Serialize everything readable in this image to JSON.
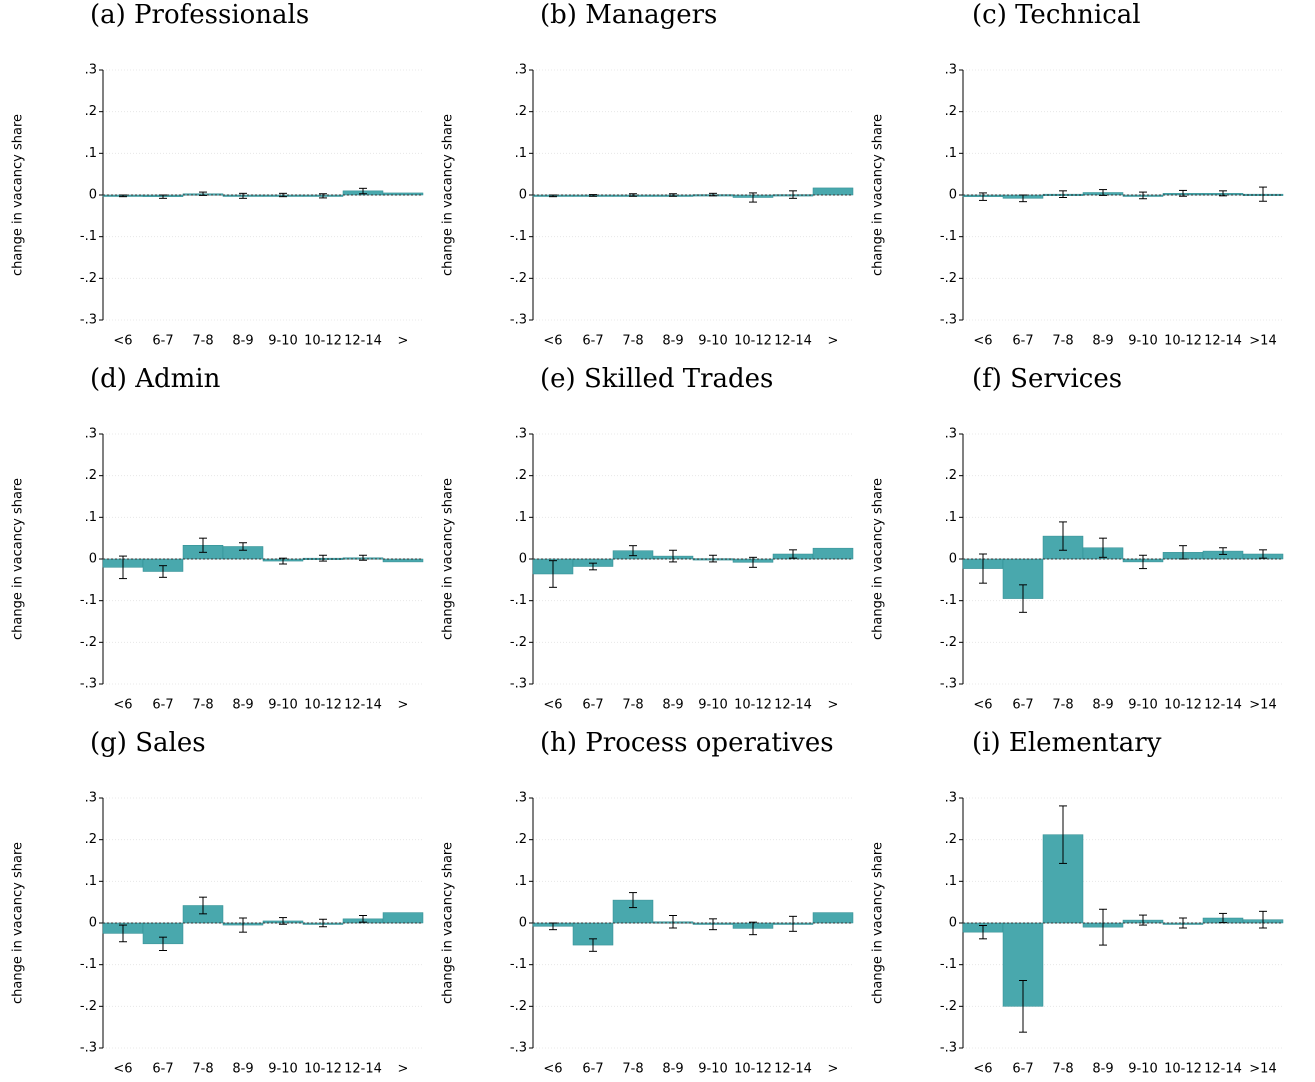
{
  "figure": {
    "bar_color": "#49a8ad",
    "bar_edge_color": "#2f8b90",
    "error_bar_color": "#000000"
  },
  "chart_data": [
    {
      "type": "bar",
      "title": "(a) Professionals",
      "ylabel": "change in vacancy share",
      "ylim": [
        -0.3,
        0.3
      ],
      "y_ticks": [
        ".3",
        ".2",
        ".1",
        "0",
        "-.1",
        "-.2",
        "-.3"
      ],
      "categories": [
        "<6",
        "6-7",
        "7-8",
        "8-9",
        "9-10",
        "10-12",
        "12-14",
        ">"
      ],
      "values": [
        -0.002,
        -0.004,
        0.003,
        -0.002,
        0.0,
        -0.002,
        0.01,
        0.005
      ],
      "error_low": [
        -0.004,
        -0.008,
        -0.001,
        -0.008,
        -0.004,
        -0.007,
        0.003,
        null
      ],
      "error_high": [
        0.0,
        0.0,
        0.007,
        0.004,
        0.004,
        0.003,
        0.016,
        null
      ]
    },
    {
      "type": "bar",
      "title": "(b) Managers",
      "ylabel": "change in vacancy share",
      "ylim": [
        -0.3,
        0.3
      ],
      "y_ticks": [
        ".3",
        ".2",
        ".1",
        "0",
        "-.1",
        "-.2",
        "-.3"
      ],
      "categories": [
        "<6",
        "6-7",
        "7-8",
        "8-9",
        "9-10",
        "10-12",
        "12-14",
        ">"
      ],
      "values": [
        -0.002,
        -0.001,
        0.0,
        0.0,
        0.001,
        -0.006,
        0.001,
        0.017
      ],
      "error_low": [
        -0.004,
        -0.003,
        -0.003,
        -0.003,
        -0.002,
        -0.017,
        -0.008,
        null
      ],
      "error_high": [
        0.0,
        0.001,
        0.003,
        0.003,
        0.004,
        0.005,
        0.01,
        null
      ]
    },
    {
      "type": "bar",
      "title": "(c) Technical",
      "ylabel": "change in vacancy share",
      "ylim": [
        -0.3,
        0.3
      ],
      "y_ticks": [
        ".3",
        ".2",
        ".1",
        "0",
        "-.1",
        "-.2",
        "-.3"
      ],
      "categories": [
        "<6",
        "6-7",
        "7-8",
        "8-9",
        "9-10",
        "10-12",
        "12-14",
        ">14"
      ],
      "values": [
        -0.004,
        -0.008,
        0.002,
        0.006,
        -0.001,
        0.004,
        0.004,
        0.002
      ],
      "error_low": [
        -0.013,
        -0.016,
        -0.006,
        -0.001,
        -0.009,
        -0.003,
        -0.002,
        -0.015
      ],
      "error_high": [
        0.005,
        0.0,
        0.01,
        0.013,
        0.007,
        0.011,
        0.01,
        0.019
      ]
    },
    {
      "type": "bar",
      "title": "(d) Admin",
      "ylabel": "change in vacancy share",
      "ylim": [
        -0.3,
        0.3
      ],
      "y_ticks": [
        ".3",
        ".2",
        ".1",
        "0",
        "-.1",
        "-.2",
        "-.3"
      ],
      "categories": [
        "<6",
        "6-7",
        "7-8",
        "8-9",
        "9-10",
        "10-12",
        "12-14",
        ">"
      ],
      "values": [
        -0.02,
        -0.03,
        0.033,
        0.03,
        -0.005,
        0.002,
        0.003,
        -0.007
      ],
      "error_low": [
        -0.047,
        -0.044,
        0.016,
        0.021,
        -0.012,
        -0.005,
        -0.003,
        null
      ],
      "error_high": [
        0.007,
        -0.016,
        0.05,
        0.039,
        0.002,
        0.009,
        0.009,
        null
      ]
    },
    {
      "type": "bar",
      "title": "(e) Skilled Trades",
      "ylabel": "change in vacancy share",
      "ylim": [
        -0.3,
        0.3
      ],
      "y_ticks": [
        ".3",
        ".2",
        ".1",
        "0",
        "-.1",
        "-.2",
        "-.3"
      ],
      "categories": [
        "<6",
        "6-7",
        "7-8",
        "8-9",
        "9-10",
        "10-12",
        "12-14",
        ">"
      ],
      "values": [
        -0.036,
        -0.018,
        0.02,
        0.007,
        0.001,
        -0.008,
        0.012,
        0.026
      ],
      "error_low": [
        -0.068,
        -0.026,
        0.008,
        -0.007,
        -0.007,
        -0.02,
        0.002,
        null
      ],
      "error_high": [
        -0.004,
        -0.01,
        0.032,
        0.021,
        0.009,
        0.004,
        0.022,
        null
      ]
    },
    {
      "type": "bar",
      "title": "(f) Services",
      "ylabel": "change in vacancy share",
      "ylim": [
        -0.3,
        0.3
      ],
      "y_ticks": [
        ".3",
        ".2",
        ".1",
        "0",
        "-.1",
        "-.2",
        "-.3"
      ],
      "categories": [
        "<6",
        "6-7",
        "7-8",
        "8-9",
        "9-10",
        "10-12",
        "12-14",
        ">14"
      ],
      "values": [
        -0.023,
        -0.095,
        0.055,
        0.027,
        -0.007,
        0.016,
        0.019,
        0.012
      ],
      "error_low": [
        -0.058,
        -0.128,
        0.021,
        0.004,
        -0.023,
        0.0,
        0.011,
        0.002
      ],
      "error_high": [
        0.012,
        -0.062,
        0.089,
        0.05,
        0.009,
        0.032,
        0.027,
        0.022
      ]
    },
    {
      "type": "bar",
      "title": "(g) Sales",
      "ylabel": "change in vacancy share",
      "ylim": [
        -0.3,
        0.3
      ],
      "y_ticks": [
        ".3",
        ".2",
        ".1",
        "0",
        "-.1",
        "-.2",
        "-.3"
      ],
      "categories": [
        "<6",
        "6-7",
        "7-8",
        "8-9",
        "9-10",
        "10-12",
        "12-14",
        ">"
      ],
      "values": [
        -0.025,
        -0.05,
        0.042,
        -0.005,
        0.005,
        0.0,
        0.01,
        0.025
      ],
      "error_low": [
        -0.045,
        -0.066,
        0.022,
        -0.022,
        -0.003,
        -0.009,
        0.002,
        null
      ],
      "error_high": [
        -0.005,
        -0.034,
        0.062,
        0.012,
        0.013,
        0.009,
        0.018,
        null
      ]
    },
    {
      "type": "bar",
      "title": "(h) Process operatives",
      "ylabel": "change in vacancy share",
      "ylim": [
        -0.3,
        0.3
      ],
      "y_ticks": [
        ".3",
        ".2",
        ".1",
        "0",
        "-.1",
        "-.2",
        "-.3"
      ],
      "categories": [
        "<6",
        "6-7",
        "7-8",
        "8-9",
        "9-10",
        "10-12",
        "12-14",
        ">"
      ],
      "values": [
        -0.008,
        -0.053,
        0.055,
        0.003,
        -0.003,
        -0.013,
        -0.002,
        0.025
      ],
      "error_low": [
        -0.016,
        -0.068,
        0.037,
        -0.012,
        -0.016,
        -0.028,
        -0.02,
        null
      ],
      "error_high": [
        0.0,
        -0.038,
        0.073,
        0.018,
        0.01,
        0.002,
        0.016,
        null
      ]
    },
    {
      "type": "bar",
      "title": "(i) Elementary",
      "ylabel": "change in vacancy share",
      "ylim": [
        -0.3,
        0.3
      ],
      "y_ticks": [
        ".3",
        ".2",
        ".1",
        "0",
        "-.1",
        "-.2",
        "-.3"
      ],
      "categories": [
        "<6",
        "6-7",
        "7-8",
        "8-9",
        "9-10",
        "10-12",
        "12-14",
        ">14"
      ],
      "values": [
        -0.022,
        -0.2,
        0.212,
        -0.01,
        0.007,
        0.0,
        0.012,
        0.008
      ],
      "error_low": [
        -0.038,
        -0.262,
        0.143,
        -0.053,
        -0.005,
        -0.012,
        0.001,
        -0.012
      ],
      "error_high": [
        -0.006,
        -0.138,
        0.281,
        0.033,
        0.019,
        0.012,
        0.023,
        0.028
      ]
    }
  ]
}
